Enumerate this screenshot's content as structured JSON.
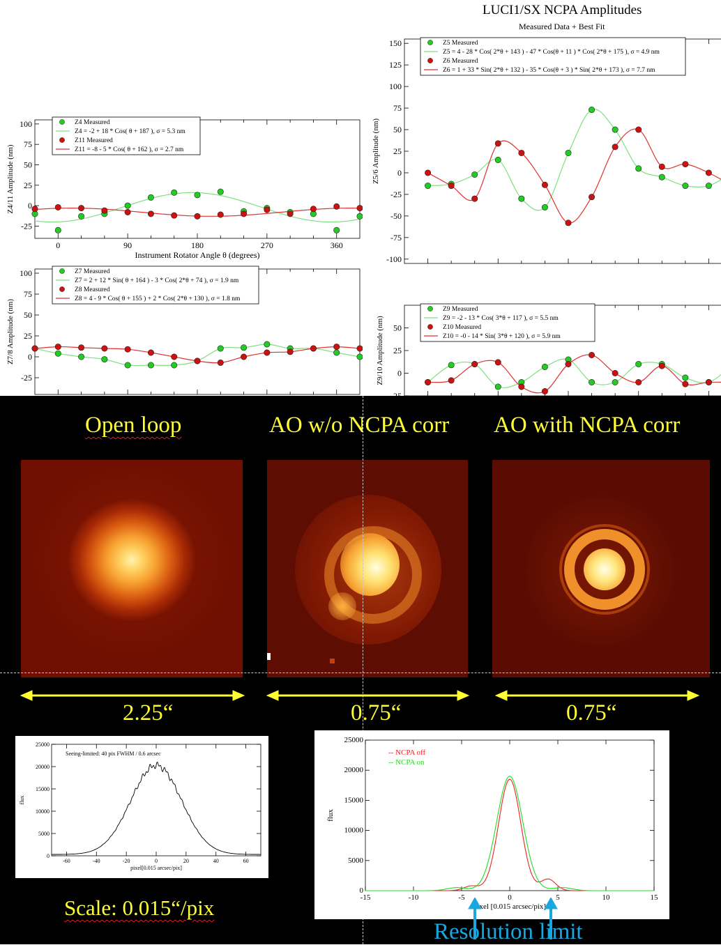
{
  "header": {
    "title": "LUCI1/SX NCPA Amplitudes",
    "subtitle": "Measured Data + Best Fit"
  },
  "colors": {
    "green_marker": "#22cc22",
    "red_marker": "#cc1111",
    "green_fit": "#7fe07f",
    "red_fit": "#e03030",
    "yellow_label": "#ffff33",
    "cyan_label": "#19a7e0"
  },
  "chart_data": [
    {
      "id": "z4z11",
      "type": "scatter",
      "xlabel": "Instrument Rotator Angle θ (degrees)",
      "ylabel": "Z4/11 Amplitude (nm)",
      "xlim": [
        -30,
        390
      ],
      "ylim": [
        -40,
        105
      ],
      "xticks": [
        "0",
        "90",
        "180",
        "270",
        "360"
      ],
      "yticks": [
        "100",
        "75",
        "50",
        "25",
        "0",
        "-25"
      ],
      "legend": [
        "Z4 Measured",
        "Z4 = -2 + 18 * Cos( θ + 187 ), σ = 5.3 nm",
        "Z11 Measured",
        "Z11 = -8 - 5 * Cos( θ + 162 ), σ = 2.7 nm"
      ],
      "series": [
        {
          "name": "Z4 Measured",
          "color": "green",
          "x": [
            -30,
            0,
            30,
            60,
            90,
            120,
            150,
            180,
            210,
            240,
            270,
            300,
            330,
            360,
            390
          ],
          "y": [
            -10,
            -30,
            -13,
            -10,
            0,
            10,
            16,
            13,
            17,
            -7,
            -3,
            -8,
            -10,
            -30,
            -13
          ]
        },
        {
          "name": "Z11 Measured",
          "color": "red",
          "x": [
            -30,
            0,
            30,
            60,
            90,
            120,
            150,
            180,
            210,
            240,
            270,
            300,
            330,
            360,
            390
          ],
          "y": [
            -4,
            -2,
            -3,
            -6,
            -8,
            -10,
            -12,
            -13,
            -11,
            -10,
            -5,
            -10,
            -4,
            -1,
            -3
          ]
        }
      ],
      "fits": [
        {
          "name": "Z4 fit",
          "color": "green",
          "a": -2,
          "b": 18,
          "phase": 187,
          "func": "cos"
        },
        {
          "name": "Z11 fit",
          "color": "red",
          "a": -8,
          "b": -5,
          "phase": 162,
          "func": "cos"
        }
      ]
    },
    {
      "id": "z5z6",
      "type": "scatter",
      "xlabel": "",
      "ylabel": "Z5/6 Amplitude (nm)",
      "xlim": [
        -30,
        390
      ],
      "ylim": [
        -105,
        155
      ],
      "yticks": [
        "150",
        "125",
        "100",
        "75",
        "50",
        "25",
        "0",
        "-25",
        "-50",
        "-75",
        "-100"
      ],
      "legend": [
        "Z5 Measured",
        "Z5 = 4 - 28 * Cos( 2*θ + 143 ) - 47 * Cos(θ + 11 ) * Cos( 2*θ + 175 ), σ = 4.9 nm",
        "Z6 Measured",
        "Z6 = 1 + 33 * Sin( 2*θ + 132 ) - 35 * Cos(θ + 3 ) * Sin( 2*θ + 173 ), σ = 7.7 nm"
      ],
      "series": [
        {
          "name": "Z5 Measured",
          "color": "green",
          "x": [
            0,
            30,
            60,
            90,
            120,
            150,
            180,
            210,
            240,
            270,
            300,
            330,
            360,
            390
          ],
          "y": [
            -15,
            -13,
            -2,
            15,
            -30,
            -40,
            23,
            73,
            50,
            5,
            -5,
            -15,
            -15,
            0
          ]
        },
        {
          "name": "Z6 Measured",
          "color": "red",
          "x": [
            0,
            30,
            60,
            90,
            120,
            150,
            180,
            210,
            240,
            270,
            300,
            330,
            360,
            390
          ],
          "y": [
            0,
            -15,
            -30,
            34,
            23,
            -14,
            -58,
            -28,
            30,
            50,
            7,
            10,
            0,
            -15
          ]
        }
      ]
    },
    {
      "id": "z7z8",
      "type": "scatter",
      "xlabel": "",
      "ylabel": "Z7/8 Amplitude (nm)",
      "xlim": [
        -30,
        390
      ],
      "ylim": [
        -45,
        105
      ],
      "yticks": [
        "100",
        "75",
        "50",
        "25",
        "0",
        "-25"
      ],
      "legend": [
        "Z7 Measured",
        "Z7 = 2 + 12 * Sin( θ + 164 ) - 3 * Cos( 2*θ + 74 ), σ = 1.9 nm",
        "Z8 Measured",
        "Z8 = 4 - 9 * Cos( θ + 155 ) + 2 * Cos( 2*θ + 130 ), σ = 1.8 nm"
      ],
      "series": [
        {
          "name": "Z7 Measured",
          "color": "green",
          "x": [
            -30,
            0,
            30,
            60,
            90,
            120,
            150,
            180,
            210,
            240,
            270,
            300,
            330,
            360,
            390
          ],
          "y": [
            10,
            4,
            0,
            -3,
            -10,
            -10,
            -10,
            -5,
            10,
            11,
            15,
            10,
            10,
            5,
            0
          ]
        },
        {
          "name": "Z8 Measured",
          "color": "red",
          "x": [
            -30,
            0,
            30,
            60,
            90,
            120,
            150,
            180,
            210,
            240,
            270,
            300,
            330,
            360,
            390
          ],
          "y": [
            10,
            12,
            11,
            10,
            9,
            5,
            0,
            -5,
            -7,
            0,
            5,
            6,
            10,
            12,
            10
          ]
        }
      ]
    },
    {
      "id": "z9z10",
      "type": "scatter",
      "xlabel": "",
      "ylabel": "Z9/10 Amplitude (nm)",
      "xlim": [
        -30,
        390
      ],
      "ylim": [
        -25,
        75
      ],
      "yticks": [
        "50",
        "25",
        "0",
        "-25"
      ],
      "legend": [
        "Z9 Measured",
        "Z9 = -2 - 13 * Cos( 3*θ + 117 ), σ = 5.5 nm",
        "Z10 Measured",
        "Z10 = -0 - 14 * Sin( 3*θ + 120 ), σ = 5.9 nm"
      ],
      "series": [
        {
          "name": "Z9 Measured",
          "color": "green",
          "x": [
            0,
            30,
            60,
            90,
            120,
            150,
            180,
            210,
            240,
            270,
            300,
            330,
            360,
            390
          ],
          "y": [
            -10,
            9,
            10,
            -15,
            -10,
            7,
            15,
            -10,
            -10,
            10,
            10,
            -5,
            -10,
            9
          ]
        },
        {
          "name": "Z10 Measured",
          "color": "red",
          "x": [
            0,
            30,
            60,
            90,
            120,
            150,
            180,
            210,
            240,
            270,
            300,
            330,
            360,
            390
          ],
          "y": [
            -10,
            -8,
            10,
            12,
            -15,
            -20,
            10,
            20,
            0,
            -10,
            8,
            -12,
            -10,
            -10
          ]
        }
      ]
    },
    {
      "id": "seeing_profile",
      "type": "line",
      "title": "Seeing-limited: 40 pix FWHM / 0.6 arcsec",
      "xlabel": "pixel[0.015 arcsec/pix]",
      "ylabel": "flux",
      "xlim": [
        -70,
        70
      ],
      "ylim": [
        0,
        25000
      ],
      "xticks": [
        "-60",
        "-40",
        "-20",
        "0",
        "20",
        "40",
        "60"
      ],
      "yticks": [
        "25000",
        "20000",
        "15000",
        "10000",
        "5000",
        "0"
      ],
      "series": [
        {
          "name": "",
          "color": "#000000",
          "amplitude": 20000,
          "fwhm": 40
        }
      ]
    },
    {
      "id": "ao_profile",
      "type": "line",
      "xlabel": "pixel [0.015 arcsec/pix]",
      "ylabel": "flux",
      "xlim": [
        -15,
        15
      ],
      "ylim": [
        0,
        25000
      ],
      "xticks": [
        "-15",
        "-10",
        "-5",
        "0",
        "5",
        "10",
        "15"
      ],
      "yticks": [
        "25000",
        "20000",
        "15000",
        "10000",
        "5000",
        "0"
      ],
      "legend_lines": [
        "-- NCPA off",
        "-- NCPA on"
      ],
      "series": [
        {
          "name": "NCPA off",
          "color": "#ee2222",
          "peak": 18500
        },
        {
          "name": "NCPA on",
          "color": "#22dd22",
          "peak": 19000
        }
      ]
    }
  ],
  "images": {
    "open_loop": {
      "title": "Open loop",
      "scale": "2.25“"
    },
    "ao_without": {
      "title": "AO w/o NCPA  corr",
      "scale": "0.75“"
    },
    "ao_with": {
      "title": "AO with NCPA corr",
      "scale": "0.75“"
    }
  },
  "scale_note": "Scale: 0.015“/pix",
  "resolution_note": "Resolution limit"
}
